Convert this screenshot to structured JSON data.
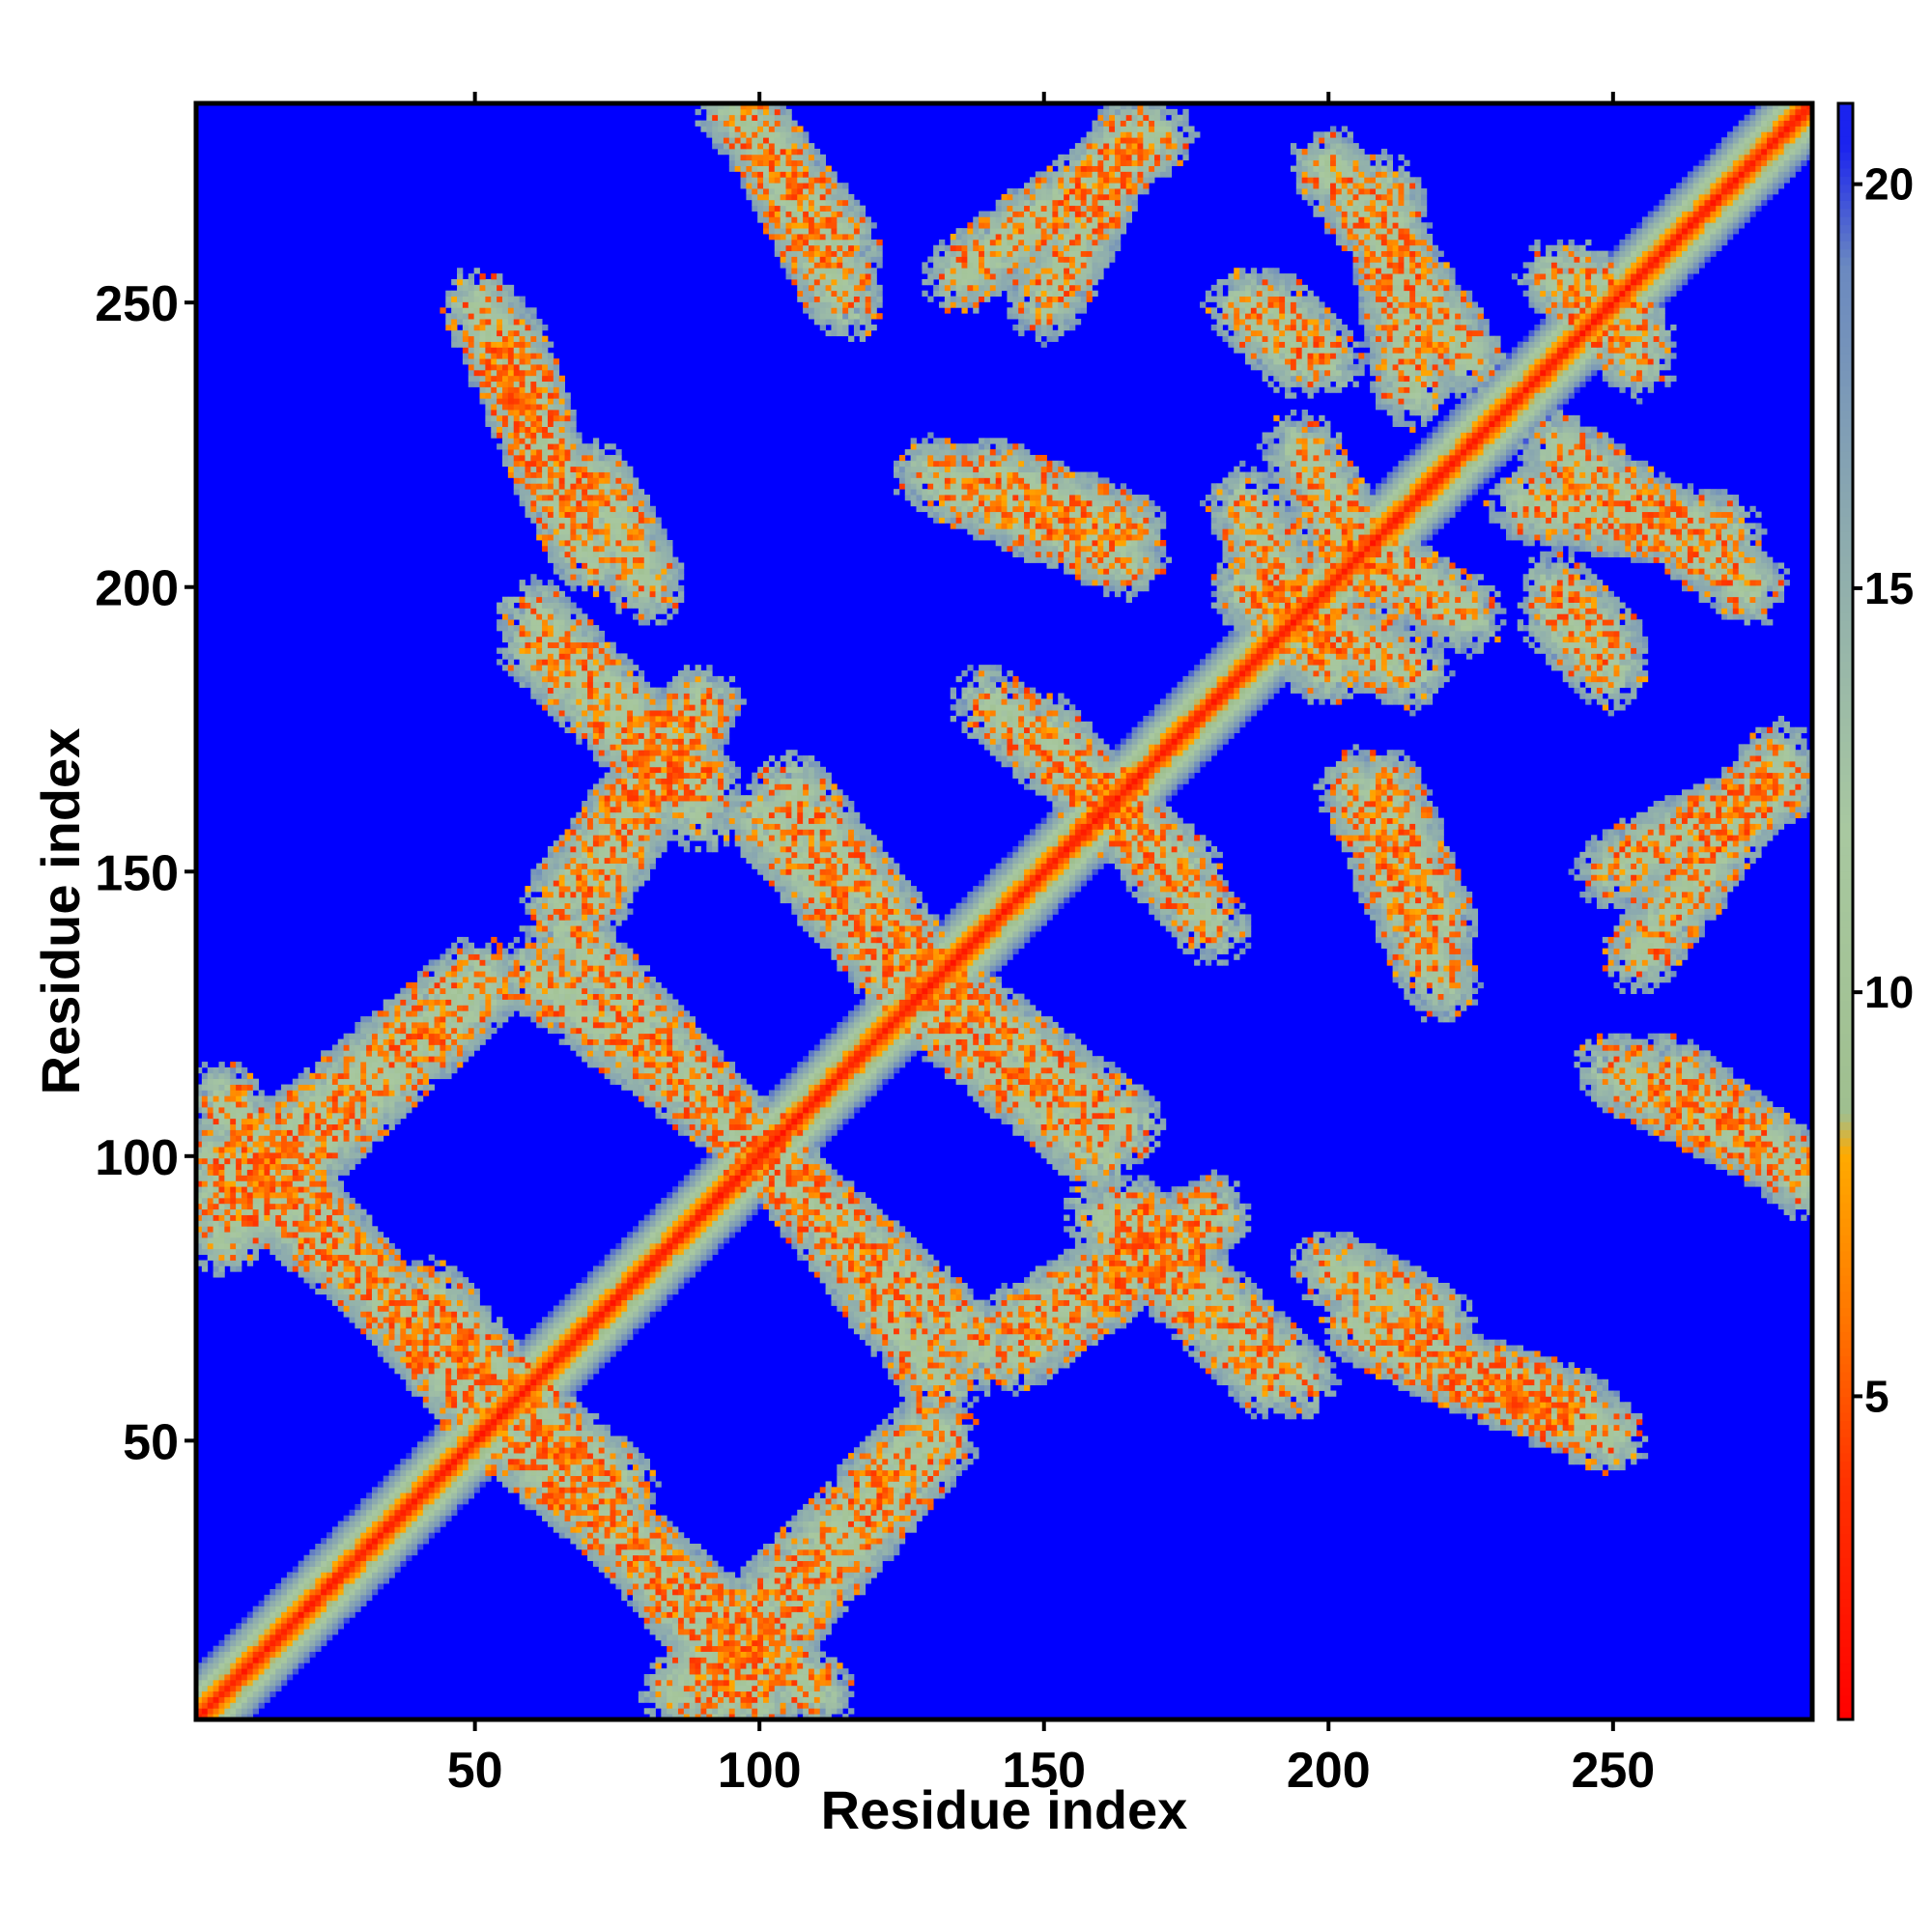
{
  "chart_data": {
    "type": "heatmap",
    "description_of_values": "pairwise distance map",
    "xlabel": "Residue index",
    "ylabel": "Residue index",
    "n_residues": 285,
    "xlim": [
      1,
      285
    ],
    "ylim": [
      1,
      285
    ],
    "x_ticks": [
      50,
      100,
      150,
      200,
      250
    ],
    "y_ticks": [
      50,
      100,
      150,
      200,
      250
    ],
    "colorbar": {
      "range": [
        1,
        21
      ],
      "ticks": [
        5,
        10,
        15,
        20
      ],
      "saturation_color": "#0000ff",
      "saturation_threshold": 20.5,
      "stops": [
        {
          "value": 1,
          "color": "#ff0000"
        },
        {
          "value": 4,
          "color": "#ff3300"
        },
        {
          "value": 6,
          "color": "#ff7700"
        },
        {
          "value": 8,
          "color": "#ffaa00"
        },
        {
          "value": 8.5,
          "color": "#9fbf8f"
        },
        {
          "value": 12,
          "color": "#a8c8a0"
        },
        {
          "value": 16,
          "color": "#8aa8b0"
        },
        {
          "value": 19,
          "color": "#6a88c0"
        },
        {
          "value": 21,
          "color": "#0000ff"
        }
      ]
    },
    "diagonal_band": {
      "core_value": 2,
      "half_width": 9
    },
    "contact_segments": [
      {
        "from": [
          3,
          92
        ],
        "to": [
          50,
          132
        ],
        "value": 11
      },
      {
        "from": [
          3,
          100
        ],
        "to": [
          75,
          42
        ],
        "value": 11
      },
      {
        "from": [
          60,
          132
        ],
        "to": [
          100,
          102
        ],
        "value": 11
      },
      {
        "from": [
          55,
          50
        ],
        "to": [
          110,
          5
        ],
        "value": 11
      },
      {
        "from": [
          85,
          5
        ],
        "to": [
          130,
          52
        ],
        "value": 11
      },
      {
        "from": [
          100,
          100
        ],
        "to": [
          140,
          65
        ],
        "value": 11
      },
      {
        "from": [
          60,
          190
        ],
        "to": [
          90,
          160
        ],
        "value": 11
      },
      {
        "from": [
          65,
          145
        ],
        "to": [
          90,
          180
        ],
        "value": 11
      },
      {
        "from": [
          100,
          160
        ],
        "to": [
          125,
          130
        ],
        "value": 11
      },
      {
        "from": [
          125,
          135
        ],
        "to": [
          165,
          105
        ],
        "value": 11
      },
      {
        "from": [
          55,
          245
        ],
        "to": [
          65,
          215
        ],
        "value": 11
      },
      {
        "from": [
          70,
          220
        ],
        "to": [
          80,
          200
        ],
        "value": 11
      },
      {
        "from": [
          95,
          285
        ],
        "to": [
          115,
          260
        ],
        "value": 11
      },
      {
        "from": [
          135,
          255
        ],
        "to": [
          170,
          280
        ],
        "value": 11
      },
      {
        "from": [
          130,
          220
        ],
        "to": [
          165,
          205
        ],
        "value": 11
      },
      {
        "from": [
          140,
          180
        ],
        "to": [
          175,
          150
        ],
        "value": 11
      },
      {
        "from": [
          145,
          70
        ],
        "to": [
          180,
          90
        ],
        "value": 11
      },
      {
        "from": [
          165,
          90
        ],
        "to": [
          195,
          60
        ],
        "value": 11
      },
      {
        "from": [
          185,
          215
        ],
        "to": [
          200,
          185
        ],
        "value": 11
      },
      {
        "from": [
          190,
          250
        ],
        "to": [
          200,
          240
        ],
        "value": 11
      },
      {
        "from": [
          200,
          275
        ],
        "to": [
          225,
          240
        ],
        "value": 11
      },
      {
        "from": [
          200,
          210
        ],
        "to": [
          225,
          195
        ],
        "value": 11
      },
      {
        "from": [
          210,
          165
        ],
        "to": [
          220,
          140
        ],
        "value": 11
      },
      {
        "from": [
          205,
          70
        ],
        "to": [
          240,
          55
        ],
        "value": 11
      },
      {
        "from": [
          235,
          215
        ],
        "to": [
          270,
          210
        ],
        "value": 11
      },
      {
        "from": [
          240,
          195
        ],
        "to": [
          250,
          185
        ],
        "value": 11
      },
      {
        "from": [
          250,
          150
        ],
        "to": [
          280,
          165
        ],
        "value": 11
      },
      {
        "from": [
          250,
          115
        ],
        "to": [
          280,
          100
        ],
        "value": 11
      },
      {
        "from": [
          230,
          60
        ],
        "to": [
          250,
          50
        ],
        "value": 11
      },
      {
        "from": [
          240,
          255
        ],
        "to": [
          255,
          245
        ],
        "value": 11
      }
    ]
  }
}
